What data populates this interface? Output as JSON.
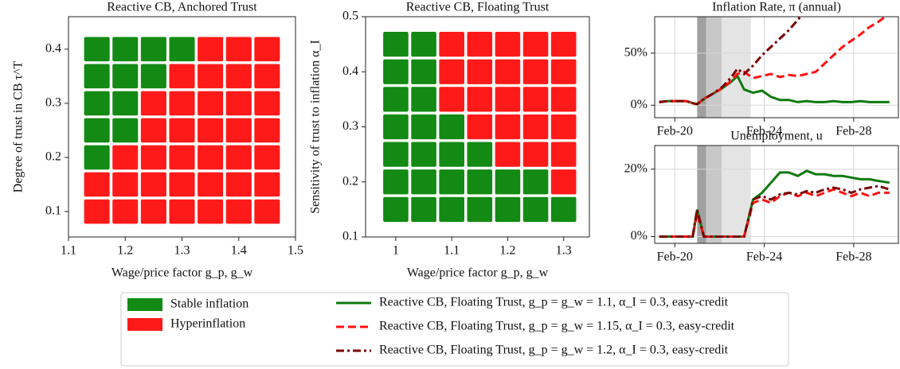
{
  "chart_data": [
    {
      "type": "heatmap",
      "title": "Reactive CB, Anchored Trust",
      "xlabel": "Wage/price factor g_p, g_w",
      "ylabel": "Degree of trust in CB τ^T",
      "x": [
        1.15,
        1.2,
        1.25,
        1.3,
        1.35,
        1.4,
        1.45
      ],
      "y": [
        0.1,
        0.15,
        0.2,
        0.25,
        0.3,
        0.35,
        0.4
      ],
      "values": [
        [
          1,
          1,
          1,
          1,
          1,
          1,
          1
        ],
        [
          1,
          1,
          1,
          1,
          1,
          1,
          1
        ],
        [
          0,
          1,
          1,
          1,
          1,
          1,
          1
        ],
        [
          0,
          0,
          1,
          1,
          1,
          1,
          1
        ],
        [
          0,
          0,
          1,
          1,
          1,
          1,
          1
        ],
        [
          0,
          0,
          0,
          1,
          1,
          1,
          1
        ],
        [
          0,
          0,
          0,
          0,
          1,
          1,
          1
        ]
      ],
      "class_names": [
        "Stable inflation",
        "Hyperinflation"
      ],
      "colors": [
        "#138a13",
        "#ff1a1a"
      ],
      "xlim": [
        1.1,
        1.5
      ],
      "ylim": [
        0.053,
        0.46
      ],
      "xticks": [
        1.1,
        1.2,
        1.3,
        1.4,
        1.5
      ],
      "yticks": [
        0.1,
        0.2,
        0.3,
        0.4
      ]
    },
    {
      "type": "heatmap",
      "title": "Reactive CB, Floating Trust",
      "xlabel": "Wage/price factor g_p, g_w",
      "ylabel": "Sensitivity of trust to inflation α_I",
      "x": [
        1.0,
        1.05,
        1.1,
        1.15,
        1.2,
        1.25,
        1.3
      ],
      "y": [
        0.15,
        0.2,
        0.25,
        0.3,
        0.35,
        0.4,
        0.45
      ],
      "values": [
        [
          0,
          0,
          0,
          0,
          0,
          0,
          0
        ],
        [
          0,
          0,
          0,
          0,
          0,
          0,
          1
        ],
        [
          0,
          0,
          0,
          0,
          1,
          1,
          1
        ],
        [
          0,
          0,
          0,
          1,
          1,
          1,
          1
        ],
        [
          0,
          0,
          1,
          1,
          1,
          1,
          1
        ],
        [
          0,
          0,
          1,
          1,
          1,
          1,
          1
        ],
        [
          0,
          0,
          1,
          1,
          1,
          1,
          1
        ]
      ],
      "colors": [
        "#138a13",
        "#ff1a1a"
      ],
      "xlim": [
        0.946,
        1.346
      ],
      "ylim": [
        0.1,
        0.5
      ],
      "xticks": [
        1.0,
        1.1,
        1.2,
        1.3
      ],
      "yticks": [
        0.1,
        0.2,
        0.3,
        0.4,
        0.5
      ]
    },
    {
      "type": "line",
      "title": "Inflation Rate, π (annual)",
      "grid": true,
      "x": [
        2019.4,
        2019.8,
        2020.2,
        2020.6,
        2020.9,
        2021.1,
        2021.4,
        2021.8,
        2022.2,
        2022.6,
        2022.9,
        2023.2,
        2023.6,
        2024.0,
        2024.4,
        2024.8,
        2025.2,
        2025.6,
        2026.0,
        2026.4,
        2026.8,
        2027.2,
        2027.6,
        2028.0,
        2028.4,
        2028.8,
        2029.2,
        2029.7
      ],
      "spans": [
        {
          "from": 2021.1,
          "to": 2021.5,
          "color": "#a0a0a0"
        },
        {
          "from": 2021.5,
          "to": 2022.2,
          "color": "#c8c8c8"
        },
        {
          "from": 2022.2,
          "to": 2023.5,
          "color": "#e4e4e4"
        }
      ],
      "series": [
        {
          "name": "Reactive CB, Floating Trust, g_p = g_w = 1.1, α_I = 0.3, easy-credit",
          "color": "#0f7a0f",
          "dash": "none",
          "values": [
            3,
            4,
            4,
            4,
            2,
            1,
            6,
            11,
            16,
            22,
            28,
            15,
            12,
            14,
            8,
            5,
            5,
            3,
            4,
            3,
            3,
            4,
            3,
            3,
            4,
            3,
            3,
            3
          ]
        },
        {
          "name": "Reactive CB, Floating Trust, g_p = g_w = 1.15, α_I = 0.3, easy-credit",
          "color": "#ff1010",
          "dash": "10,5",
          "values": [
            3,
            4,
            4,
            4,
            2,
            1,
            6,
            11,
            16,
            23,
            30,
            32,
            26,
            28,
            30,
            27,
            29,
            28,
            30,
            32,
            40,
            48,
            56,
            62,
            68,
            75,
            80,
            88
          ]
        },
        {
          "name": "Reactive CB, Floating Trust, g_p = g_w = 1.2, α_I = 0.3, easy-credit",
          "color": "#7a0000",
          "dash": "10,4,3,4",
          "values": [
            3,
            4,
            4,
            4,
            2,
            1,
            6,
            11,
            17,
            26,
            35,
            30,
            38,
            48,
            56,
            64,
            72,
            82,
            92,
            null,
            null,
            null,
            null,
            null,
            null,
            null,
            null,
            null
          ]
        }
      ],
      "xlim": [
        2019.2,
        2030.1
      ],
      "ylim": [
        -12,
        85
      ],
      "xticks": [
        {
          "value": 2020.1,
          "label": "Feb-20"
        },
        {
          "value": 2024.1,
          "label": "Feb-24"
        },
        {
          "value": 2028.1,
          "label": "Feb-28"
        }
      ],
      "yticks": [
        {
          "value": 0,
          "label": "0%"
        },
        {
          "value": 50,
          "label": "50%"
        }
      ]
    },
    {
      "type": "line",
      "title": "Unemployment, u",
      "grid": true,
      "x": [
        2019.4,
        2019.8,
        2020.2,
        2020.6,
        2020.9,
        2021.1,
        2021.4,
        2021.8,
        2022.2,
        2022.6,
        2022.9,
        2023.2,
        2023.6,
        2024.0,
        2024.4,
        2024.8,
        2025.2,
        2025.6,
        2026.0,
        2026.4,
        2026.8,
        2027.2,
        2027.6,
        2028.0,
        2028.4,
        2028.8,
        2029.2,
        2029.7
      ],
      "spans": [
        {
          "from": 2021.1,
          "to": 2021.5,
          "color": "#a0a0a0"
        },
        {
          "from": 2021.5,
          "to": 2022.2,
          "color": "#c8c8c8"
        },
        {
          "from": 2022.2,
          "to": 2023.5,
          "color": "#e4e4e4"
        }
      ],
      "series": [
        {
          "color": "#0f7a0f",
          "dash": "none",
          "values": [
            0,
            0,
            0,
            0,
            0,
            8,
            0,
            0,
            0,
            0,
            0,
            0,
            11,
            13,
            16,
            19,
            19,
            18,
            19.5,
            18.5,
            18.5,
            18,
            18,
            17.5,
            17,
            17,
            16.5,
            16
          ]
        },
        {
          "color": "#ff1010",
          "dash": "10,5",
          "values": [
            0,
            0,
            0,
            0,
            0,
            7,
            0,
            0,
            0,
            0,
            0,
            0,
            10,
            11,
            10,
            12,
            13,
            12,
            13,
            12,
            13,
            14,
            13,
            12,
            13,
            12,
            13,
            13
          ]
        },
        {
          "color": "#7a0000",
          "dash": "10,4,3,4",
          "values": [
            0,
            0,
            0,
            0,
            0,
            8,
            0,
            0,
            0,
            0,
            0,
            0,
            11,
            12,
            11,
            12.5,
            13,
            12.5,
            13.5,
            13,
            14,
            14.5,
            14,
            13,
            14,
            14.5,
            15,
            14
          ]
        }
      ],
      "xlim": [
        2019.2,
        2030.1
      ],
      "ylim": [
        -2,
        27
      ],
      "xticks": [
        {
          "value": 2020.1,
          "label": "Feb-20"
        },
        {
          "value": 2024.1,
          "label": "Feb-24"
        },
        {
          "value": 2028.1,
          "label": "Feb-28"
        }
      ],
      "yticks": [
        {
          "value": 0,
          "label": "0%"
        },
        {
          "value": 20,
          "label": "20%"
        }
      ]
    }
  ]
}
